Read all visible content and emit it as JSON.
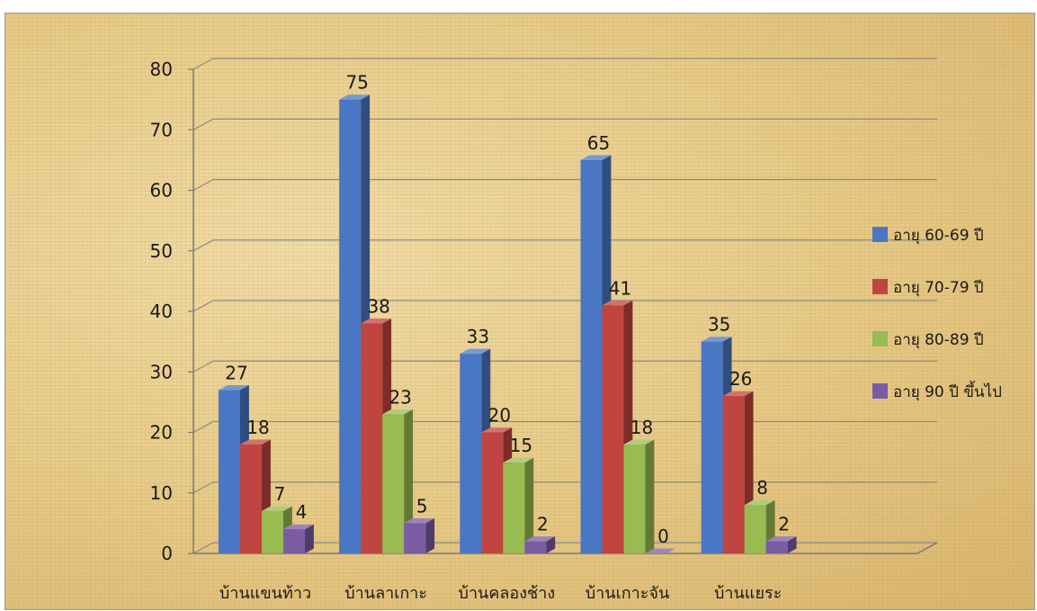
{
  "chart_data": {
    "type": "bar",
    "title": "",
    "xlabel": "",
    "ylabel": "",
    "ylim": [
      0,
      80
    ],
    "yticks": [
      "0",
      "10",
      "20",
      "30",
      "40",
      "50",
      "60",
      "70",
      "80"
    ],
    "grid": true,
    "legend_position": "right",
    "categories": [
      "บ้านแขนท้าว",
      "บ้านลาเกาะ",
      "บ้านคลองช้าง",
      "บ้านเกาะจัน",
      "บ้านแยระ"
    ],
    "series": [
      {
        "name": "อายุ 60-69 ปี",
        "values": [
          27,
          75,
          33,
          65,
          35
        ],
        "color": "#4a77c4"
      },
      {
        "name": "อายุ 70-79 ปี",
        "values": [
          18,
          38,
          20,
          41,
          26
        ],
        "color": "#c0443f"
      },
      {
        "name": "อายุ 80-89 ปี",
        "values": [
          7,
          23,
          15,
          18,
          8
        ],
        "color": "#98bb52"
      },
      {
        "name": "อายุ 90 ปี ขึ้นไป",
        "values": [
          4,
          5,
          2,
          0,
          2
        ],
        "color": "#7b5ca3"
      }
    ]
  }
}
